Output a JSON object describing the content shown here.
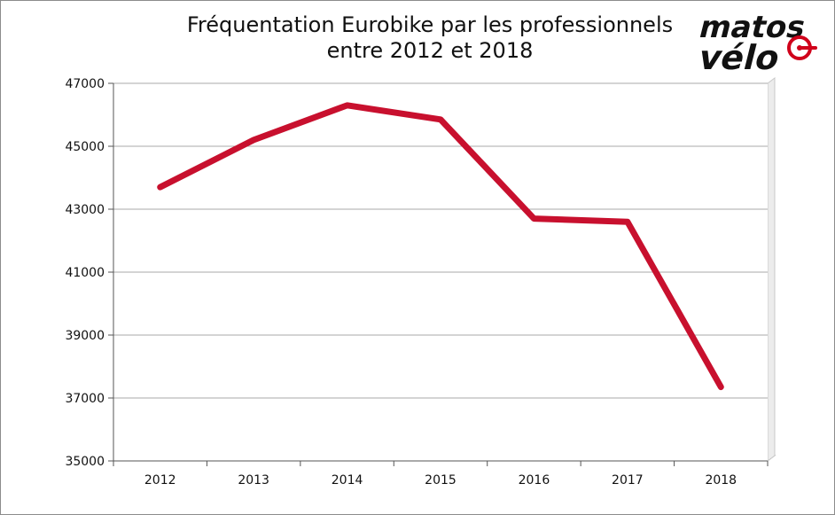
{
  "chart_data": {
    "type": "line",
    "title": "Fréquentation Eurobike par les professionnels",
    "subtitle": "entre 2012 et 2018",
    "xlabel": "",
    "ylabel": "",
    "categories": [
      "2012",
      "2013",
      "2014",
      "2015",
      "2016",
      "2017",
      "2018"
    ],
    "series": [
      {
        "values": [
          43700,
          45200,
          46300,
          45850,
          42700,
          42600,
          37350
        ],
        "color": "#c8102e"
      }
    ],
    "ylim": [
      35000,
      47000
    ],
    "yticks": [
      35000,
      37000,
      39000,
      41000,
      43000,
      45000,
      47000
    ],
    "grid": true,
    "legend": "none"
  },
  "logo": {
    "text_top": "matos",
    "text_bottom": "vélo"
  }
}
